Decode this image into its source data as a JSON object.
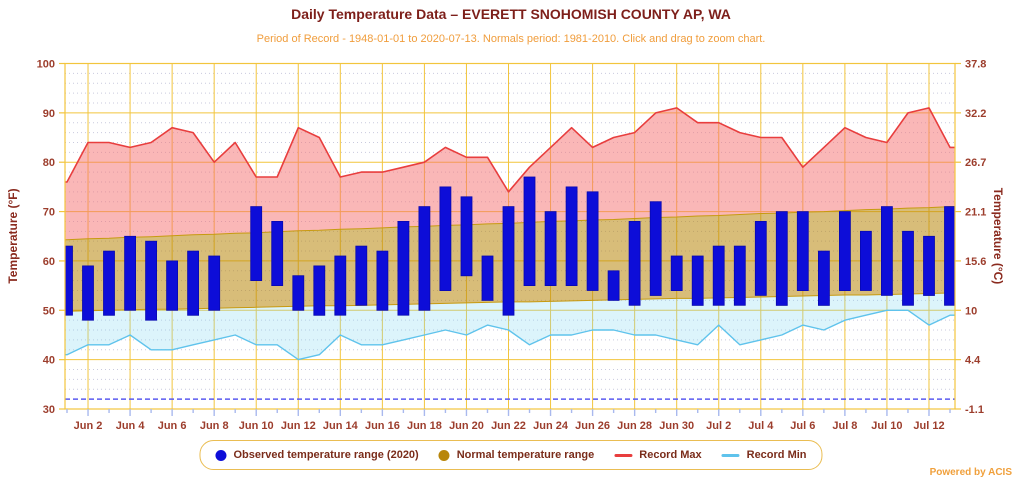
{
  "footer": {
    "powered_by": "Powered by ACIS"
  },
  "chart_data": {
    "type": "combo",
    "title": "Daily Temperature Data – EVERETT SNOHOMISH COUNTY AP, WA",
    "subtitle": "Period of Record - 1948-01-01 to 2020-07-13. Normals period: 1981-2010. Click and drag to zoom chart.",
    "ylabel_left": "Temperature (°F)",
    "ylabel_right": "Temperature (°C)",
    "ylim_f": [
      30,
      100
    ],
    "y_major_step_f": 10,
    "y_minor_step_f": 2,
    "freezing_line_f": 32,
    "grid": "major gold lines every 10F and every 2nd day; dotted minor lines every 2F",
    "legend_position": "bottom",
    "left_tick_labels": [
      "100",
      "90",
      "80",
      "70",
      "60",
      "50",
      "40",
      "30"
    ],
    "right_tick_labels": [
      "37.8",
      "32.2",
      "26.7",
      "21.1",
      "15.6",
      "10",
      "4.4",
      "-1.1"
    ],
    "x_tick_labels": [
      "Jun 2",
      "Jun 4",
      "Jun 6",
      "Jun 8",
      "Jun 10",
      "Jun 12",
      "Jun 14",
      "Jun 16",
      "Jun 18",
      "Jun 20",
      "Jun 22",
      "Jun 24",
      "Jun 26",
      "Jun 28",
      "Jun 30",
      "Jul 2",
      "Jul 4",
      "Jul 6",
      "Jul 8",
      "Jul 10",
      "Jul 12"
    ],
    "x_dates": [
      "Jun 1",
      "Jun 2",
      "Jun 3",
      "Jun 4",
      "Jun 5",
      "Jun 6",
      "Jun 7",
      "Jun 8",
      "Jun 9",
      "Jun 10",
      "Jun 11",
      "Jun 12",
      "Jun 13",
      "Jun 14",
      "Jun 15",
      "Jun 16",
      "Jun 17",
      "Jun 18",
      "Jun 19",
      "Jun 20",
      "Jun 21",
      "Jun 22",
      "Jun 23",
      "Jun 24",
      "Jun 25",
      "Jun 26",
      "Jun 27",
      "Jun 28",
      "Jun 29",
      "Jun 30",
      "Jul 1",
      "Jul 2",
      "Jul 3",
      "Jul 4",
      "Jul 5",
      "Jul 6",
      "Jul 7",
      "Jul 8",
      "Jul 9",
      "Jul 10",
      "Jul 11",
      "Jul 12",
      "Jul 13"
    ],
    "series": [
      {
        "name": "Observed temperature range (2020)",
        "type": "bar_range",
        "marker": "dot",
        "color": "#0d0dd8",
        "stroke": "#0808b0",
        "low": [
          49,
          48,
          49,
          50,
          48,
          50,
          49,
          50,
          null,
          56,
          55,
          50,
          49,
          49,
          51,
          50,
          49,
          50,
          54,
          57,
          52,
          49,
          55,
          55,
          55,
          54,
          52,
          51,
          53,
          54,
          51,
          51,
          51,
          53,
          51,
          54,
          51,
          54,
          54,
          53,
          51,
          53,
          51
        ],
        "high": [
          63,
          59,
          62,
          65,
          64,
          60,
          62,
          61,
          null,
          71,
          68,
          57,
          59,
          61,
          63,
          62,
          68,
          71,
          75,
          73,
          61,
          71,
          77,
          70,
          75,
          74,
          58,
          68,
          72,
          61,
          61,
          63,
          63,
          68,
          70,
          70,
          62,
          70,
          66,
          71,
          66,
          65,
          71
        ]
      },
      {
        "name": "Normal temperature range",
        "type": "band",
        "marker": "dot",
        "color": "#b8860b",
        "fill": "rgba(184,134,11,0.55)",
        "edge": "#c79a10",
        "low": [
          49.8,
          49.9,
          50.0,
          50.1,
          50.2,
          50.2,
          50.3,
          50.4,
          50.5,
          50.6,
          50.7,
          50.8,
          50.9,
          50.9,
          51.0,
          51.1,
          51.2,
          51.3,
          51.4,
          51.5,
          51.6,
          51.7,
          51.7,
          51.8,
          51.9,
          52.0,
          52.1,
          52.2,
          52.3,
          52.4,
          52.4,
          52.5,
          52.6,
          52.7,
          52.8,
          52.9,
          53.0,
          53.1,
          53.1,
          53.2,
          53.3,
          53.4,
          53.5
        ],
        "high": [
          64.3,
          64.5,
          64.6,
          64.8,
          64.9,
          65.1,
          65.3,
          65.4,
          65.6,
          65.7,
          65.9,
          66.1,
          66.2,
          66.4,
          66.5,
          66.7,
          66.9,
          67.0,
          67.2,
          67.3,
          67.5,
          67.6,
          67.8,
          68.0,
          68.1,
          68.3,
          68.4,
          68.6,
          68.8,
          68.9,
          69.1,
          69.2,
          69.4,
          69.6,
          69.7,
          69.9,
          70.0,
          70.2,
          70.4,
          70.5,
          70.7,
          70.8,
          71.0
        ]
      },
      {
        "name": "Record Max",
        "type": "line_area",
        "marker": "line",
        "color": "#e83e3e",
        "fill": "rgba(246,112,112,0.5)",
        "values": [
          76,
          84,
          84,
          83,
          84,
          87,
          86,
          80,
          84,
          77,
          77,
          87,
          85,
          77,
          78,
          78,
          79,
          80,
          83,
          81,
          81,
          74,
          79,
          83,
          87,
          83,
          85,
          86,
          90,
          91,
          88,
          88,
          86,
          85,
          85,
          79,
          83,
          87,
          85,
          84,
          90,
          91,
          83
        ]
      },
      {
        "name": "Record Min",
        "type": "line_area",
        "marker": "line",
        "color": "#5fc3ec",
        "fill": "rgba(130,215,240,0.28)",
        "values": [
          41,
          43,
          43,
          45,
          42,
          42,
          43,
          44,
          45,
          43,
          43,
          40,
          41,
          45,
          43,
          43,
          44,
          45,
          46,
          45,
          47,
          46,
          43,
          45,
          45,
          46,
          46,
          45,
          45,
          44,
          43,
          47,
          43,
          44,
          45,
          47,
          46,
          48,
          49,
          50,
          50,
          47,
          49
        ]
      }
    ],
    "colors": {
      "grid_major": "#f2c53d",
      "grid_minor": "#c9cade",
      "freezing": "#5a5af0",
      "x_tick_mark": "#a9b9ee",
      "tick_text": "#9c3d2c",
      "title_text": "#7d1f1a",
      "subtitle_text": "#f09d3c"
    }
  }
}
